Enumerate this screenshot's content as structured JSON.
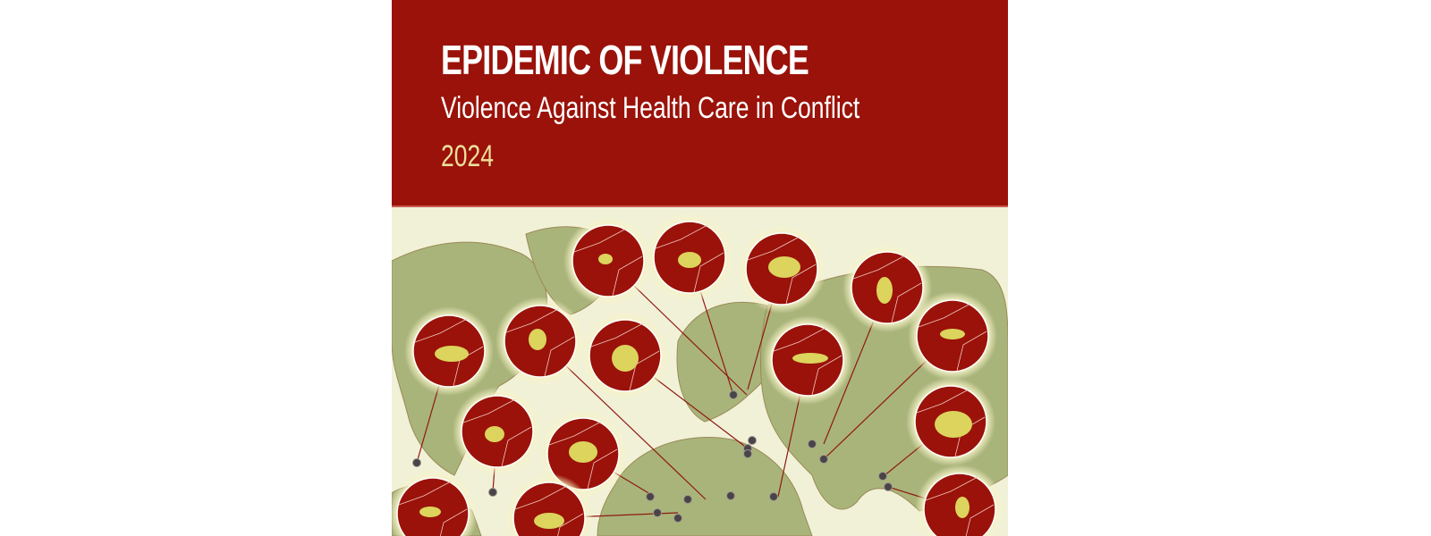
{
  "header": {
    "title": "EPIDEMIC OF VIOLENCE",
    "subtitle": "Violence Against Health Care in Conflict",
    "year": "2024"
  },
  "colors": {
    "header_bg": "#9a1209",
    "year_text": "#ecdf9c",
    "map_land": "#a9b47a",
    "map_sea": "#f1f1d8",
    "marker_fill": "#9a1209",
    "highlight_country": "#dcd45c",
    "location_dot": "#4a4448"
  }
}
